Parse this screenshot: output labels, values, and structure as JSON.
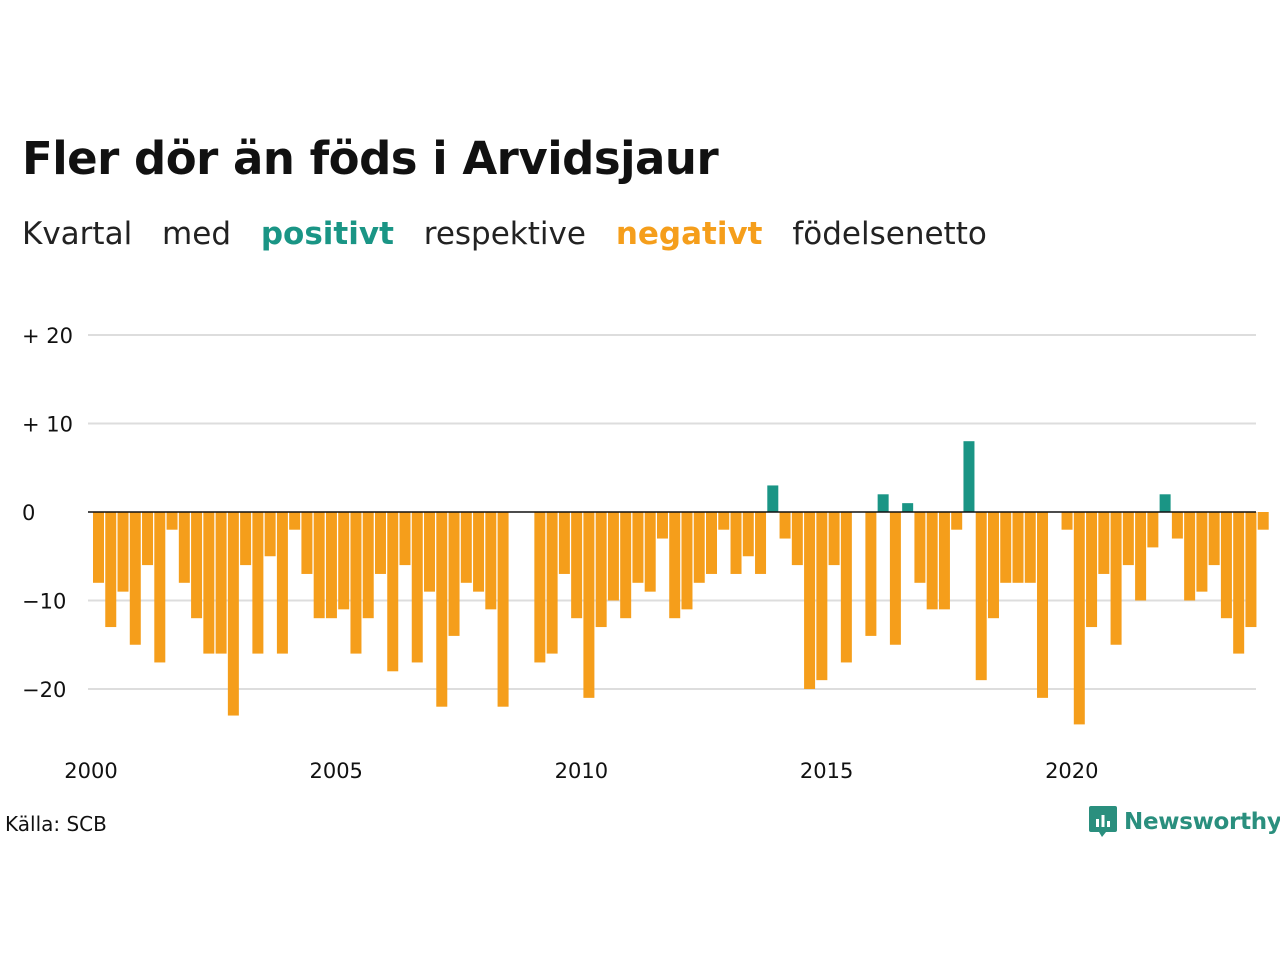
{
  "header": {
    "title": "Fler dör än föds i Arvidsjaur",
    "subtitle_parts": [
      "Kvartal",
      "med",
      "positivt",
      "respektive",
      "negativt",
      "födelsenetto"
    ]
  },
  "footer": {
    "source": "Källa: SCB",
    "logo_text": "Newsworthy"
  },
  "colors": {
    "positive": "#1a9585",
    "negative": "#f59e1b",
    "grid": "#dddddd",
    "zero_line": "#111111"
  },
  "chart_data": {
    "type": "bar",
    "xlabel": "",
    "ylabel": "",
    "ylim": [
      -26,
      20
    ],
    "y_ticks": [
      {
        "value": 20,
        "label": "+ 20"
      },
      {
        "value": 10,
        "label": "+ 10"
      },
      {
        "value": 0,
        "label": "0"
      },
      {
        "value": -10,
        "label": "−10"
      },
      {
        "value": -20,
        "label": "−20"
      }
    ],
    "x_ticks": [
      {
        "value": 2000,
        "label": "2000"
      },
      {
        "value": 2005,
        "label": "2005"
      },
      {
        "value": 2010,
        "label": "2010"
      },
      {
        "value": 2015,
        "label": "2015"
      },
      {
        "value": 2020,
        "label": "2020"
      }
    ],
    "start_year": 2000,
    "quarters_per_year": 4,
    "values": [
      -8,
      -13,
      -9,
      -15,
      -6,
      -17,
      -2,
      -8,
      -12,
      -16,
      -16,
      -23,
      -6,
      -16,
      -5,
      -16,
      -2,
      -7,
      -12,
      -12,
      -11,
      -16,
      -12,
      -7,
      -18,
      -6,
      -17,
      -9,
      -22,
      -14,
      -8,
      -9,
      -11,
      -22,
      0,
      0,
      -17,
      -16,
      -7,
      -12,
      -21,
      -13,
      -10,
      -12,
      -8,
      -9,
      -3,
      -12,
      -11,
      -8,
      -7,
      -2,
      -7,
      -5,
      -7,
      3,
      -3,
      -6,
      -20,
      -19,
      -6,
      -17,
      0,
      -14,
      2,
      -15,
      1,
      -8,
      -11,
      -11,
      -2,
      8,
      -19,
      -12,
      -8,
      -8,
      -8,
      -21,
      0,
      -2,
      -24,
      -13,
      -7,
      -15,
      -6,
      -10,
      -4,
      2,
      -3,
      -10,
      -9,
      -6,
      -12,
      -16,
      -13,
      -2
    ]
  }
}
